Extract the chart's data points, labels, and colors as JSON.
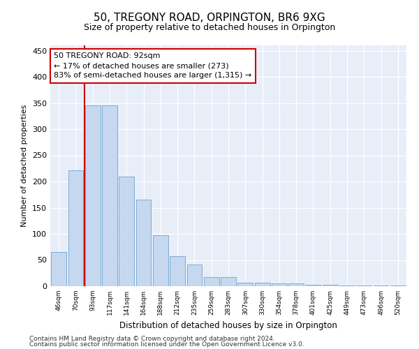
{
  "title": "50, TREGONY ROAD, ORPINGTON, BR6 9XG",
  "subtitle": "Size of property relative to detached houses in Orpington",
  "xlabel": "Distribution of detached houses by size in Orpington",
  "ylabel": "Number of detached properties",
  "categories": [
    "46sqm",
    "70sqm",
    "93sqm",
    "117sqm",
    "141sqm",
    "164sqm",
    "188sqm",
    "212sqm",
    "235sqm",
    "259sqm",
    "283sqm",
    "307sqm",
    "330sqm",
    "354sqm",
    "378sqm",
    "401sqm",
    "425sqm",
    "449sqm",
    "473sqm",
    "496sqm",
    "520sqm"
  ],
  "values": [
    65,
    222,
    345,
    345,
    210,
    165,
    97,
    57,
    42,
    18,
    18,
    7,
    7,
    6,
    6,
    3,
    3,
    1,
    1,
    1,
    1
  ],
  "bar_color": "#c5d8f0",
  "bar_edge_color": "#7aadd4",
  "property_line_color": "#cc0000",
  "annotation_line1": "50 TREGONY ROAD: 92sqm",
  "annotation_line2": "← 17% of detached houses are smaller (273)",
  "annotation_line3": "83% of semi-detached houses are larger (1,315) →",
  "annotation_box_edge_color": "#cc0000",
  "annotation_fontsize": 8.0,
  "ylim": [
    0,
    460
  ],
  "yticks": [
    0,
    50,
    100,
    150,
    200,
    250,
    300,
    350,
    400,
    450
  ],
  "bg_color": "#ffffff",
  "plot_bg_color": "#e8eef8",
  "title_fontsize": 11,
  "subtitle_fontsize": 9,
  "footnote1": "Contains HM Land Registry data © Crown copyright and database right 2024.",
  "footnote2": "Contains public sector information licensed under the Open Government Licence v3.0.",
  "footnote_fontsize": 6.5
}
